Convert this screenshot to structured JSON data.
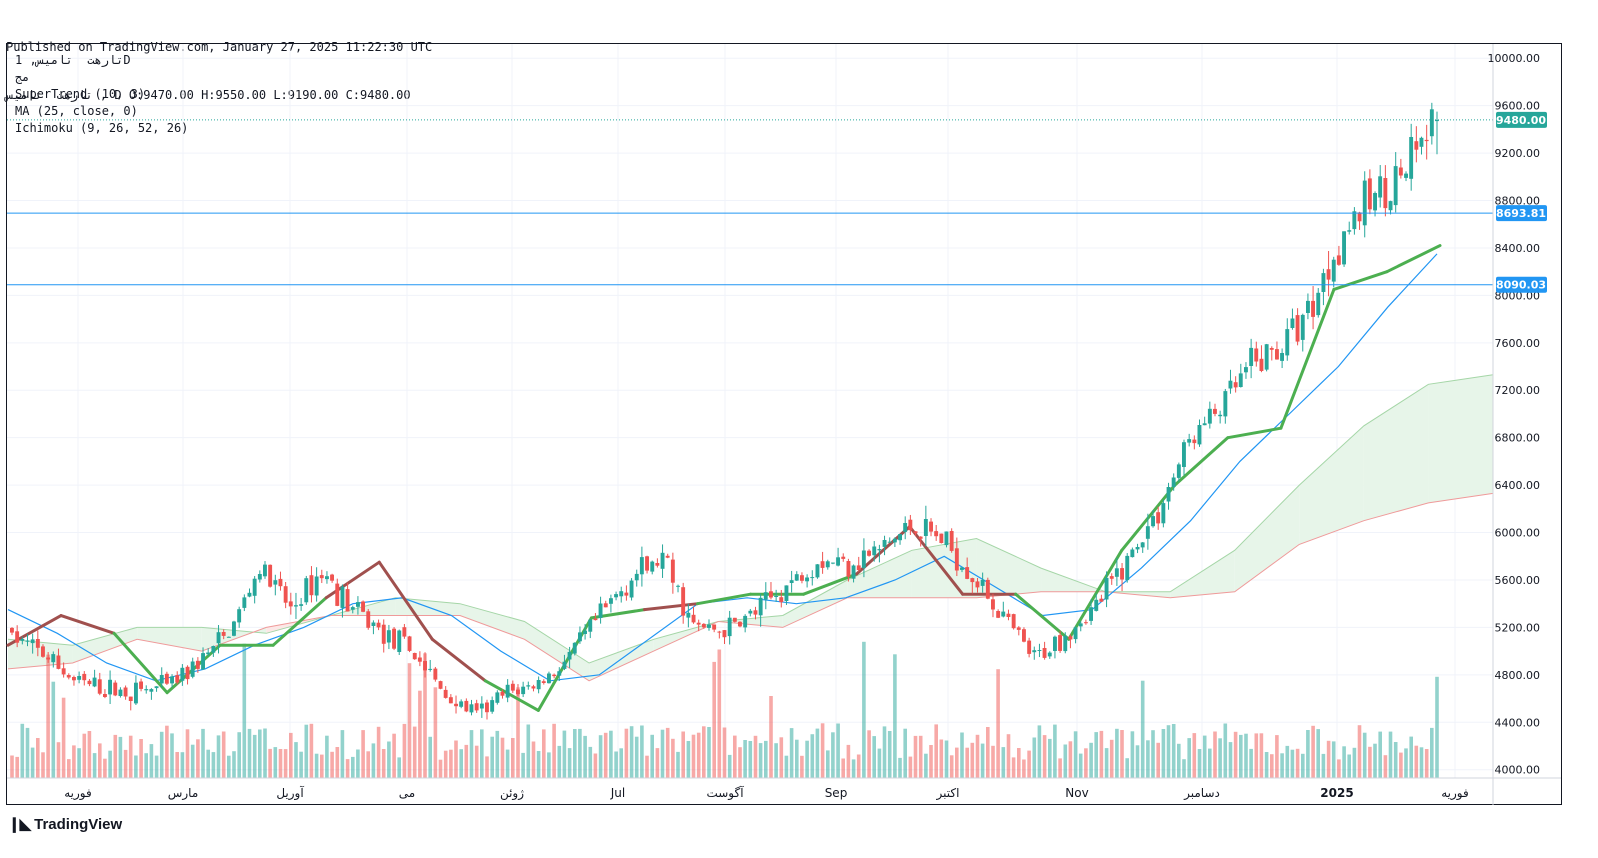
{
  "header": {
    "published": "Published on TradingView.com, January 27, 2025 11:22:30 UTC",
    "ohlc": "تارهت  تامیس , D O:9470.00 H:9550.00 L:9190.00 C:9480.00"
  },
  "legend": {
    "symbol": "تارهت  تامیس, 1D",
    "subtitle": "مج",
    "supertrend": "SuperTrend (10, 3)",
    "ma": "MA (25, close, 0)",
    "ichimoku": "Ichimoku (9, 26, 52, 26)"
  },
  "brand": {
    "name": "TradingView",
    "icon": "tradingview-logo-icon"
  },
  "colors": {
    "up": "#26a69a",
    "down": "#ef5350",
    "ma": "#2196f3",
    "supertrend_up": "#4caf50",
    "supertrend_down": "#a0504e",
    "cloud_bull": "#e7f5e9",
    "cloud_bear": "#fce8e7",
    "hline": "#2196f3",
    "last_price": "#26a69a"
  },
  "chart_data": {
    "type": "candlestick",
    "y_axis": {
      "ticks": [
        "10000.00",
        "9600.00",
        "9200.00",
        "8800.00",
        "8400.00",
        "8000.00",
        "7600.00",
        "7200.00",
        "6800.00",
        "6400.00",
        "6000.00",
        "5600.00",
        "5200.00",
        "4800.00",
        "4400.00",
        "4000.00"
      ],
      "range": [
        3930,
        10120
      ]
    },
    "x_axis": {
      "labels": [
        "فوریه",
        "مارس",
        "آوریل",
        "می",
        "ژوئن",
        "Jul",
        "آگوست",
        "Sep",
        "اکتبر",
        "Nov",
        "دسامبر",
        "2025",
        "فوریه"
      ]
    },
    "markers": {
      "last_price": {
        "value": 9480,
        "label": "9480.00"
      },
      "hlines": [
        {
          "value": 8693.81,
          "label": "8693.81"
        },
        {
          "value": 8090.03,
          "label": "8090.03"
        }
      ]
    },
    "price_path": [
      [
        5200,
        5050
      ],
      [
        5100,
        4850
      ],
      [
        4700,
        4800
      ],
      [
        4750,
        4600
      ],
      [
        4700,
        4620
      ],
      [
        4680,
        4720
      ],
      [
        5050,
        4750
      ],
      [
        5000,
        5300
      ],
      [
        5600,
        5800
      ],
      [
        5500,
        5200
      ],
      [
        5600,
        5750
      ],
      [
        5450,
        5250
      ],
      [
        5200,
        5100
      ],
      [
        5100,
        4850
      ],
      [
        4700,
        4550
      ],
      [
        4450,
        4470
      ],
      [
        4600,
        4700
      ],
      [
        4650,
        4800
      ],
      [
        4900,
        5000
      ],
      [
        5200,
        5400
      ],
      [
        5550,
        5700
      ],
      [
        5900,
        5650
      ],
      [
        5400,
        5000
      ],
      [
        5150,
        5200
      ],
      [
        5250,
        5400
      ],
      [
        5500,
        5600
      ],
      [
        5800,
        5750
      ],
      [
        5700,
        5800
      ],
      [
        5900,
        5800
      ],
      [
        6000,
        6100
      ],
      [
        6000,
        5900
      ],
      [
        5800,
        5500
      ],
      [
        5350,
        5200
      ],
      [
        5000,
        4850
      ],
      [
        5000,
        5300
      ],
      [
        5300,
        5450
      ],
      [
        5650,
        5900
      ],
      [
        6050,
        6300
      ],
      [
        6600,
        6950
      ],
      [
        6900,
        7200
      ],
      [
        7500,
        7300
      ],
      [
        7700,
        7450
      ],
      [
        7800,
        8100
      ],
      [
        8400,
        8700
      ],
      [
        9000,
        8700
      ],
      [
        9100,
        9000
      ],
      [
        9470,
        9480
      ]
    ],
    "volume_range": [
      0,
      100
    ],
    "supertrend_path": [
      [
        5050,
        "down"
      ],
      [
        5300,
        "down"
      ],
      [
        5150,
        "down"
      ],
      [
        4650,
        "up"
      ],
      [
        5050,
        "up"
      ],
      [
        5050,
        "up"
      ],
      [
        5450,
        "up"
      ],
      [
        5750,
        "down"
      ],
      [
        5100,
        "down"
      ],
      [
        4750,
        "down"
      ],
      [
        4500,
        "up"
      ],
      [
        5280,
        "up"
      ],
      [
        5350,
        "up"
      ],
      [
        5400,
        "down"
      ],
      [
        5480,
        "up"
      ],
      [
        5480,
        "up"
      ],
      [
        5650,
        "up"
      ],
      [
        6050,
        "down"
      ],
      [
        5480,
        "down"
      ],
      [
        5480,
        "down"
      ],
      [
        5100,
        "up"
      ],
      [
        5850,
        "up"
      ],
      [
        6400,
        "up"
      ],
      [
        6800,
        "up"
      ],
      [
        6880,
        "up"
      ],
      [
        8050,
        "up"
      ],
      [
        8200,
        "up"
      ],
      [
        8420,
        "up"
      ]
    ],
    "ma_path": [
      5350,
      5150,
      4900,
      4750,
      4850,
      5050,
      5200,
      5400,
      5450,
      5300,
      5000,
      4750,
      4800,
      5100,
      5400,
      5450,
      5400,
      5450,
      5600,
      5800,
      5550,
      5300,
      5350,
      5700,
      6100,
      6600,
      7000,
      7400,
      7900,
      8350
    ],
    "ichimoku": {
      "span_a": [
        5100,
        5050,
        5200,
        5200,
        5150,
        5300,
        5450,
        5400,
        5250,
        4900,
        5100,
        5250,
        5300,
        5600,
        5850,
        5950,
        5700,
        5500,
        5500,
        5850,
        6400,
        6900,
        7250,
        7330
      ],
      "span_b": [
        4850,
        4900,
        5100,
        5000,
        5200,
        5300,
        5300,
        5300,
        5100,
        4750,
        5000,
        5250,
        5200,
        5450,
        5450,
        5450,
        5500,
        5500,
        5450,
        5500,
        5900,
        6100,
        6250,
        6330
      ]
    }
  }
}
